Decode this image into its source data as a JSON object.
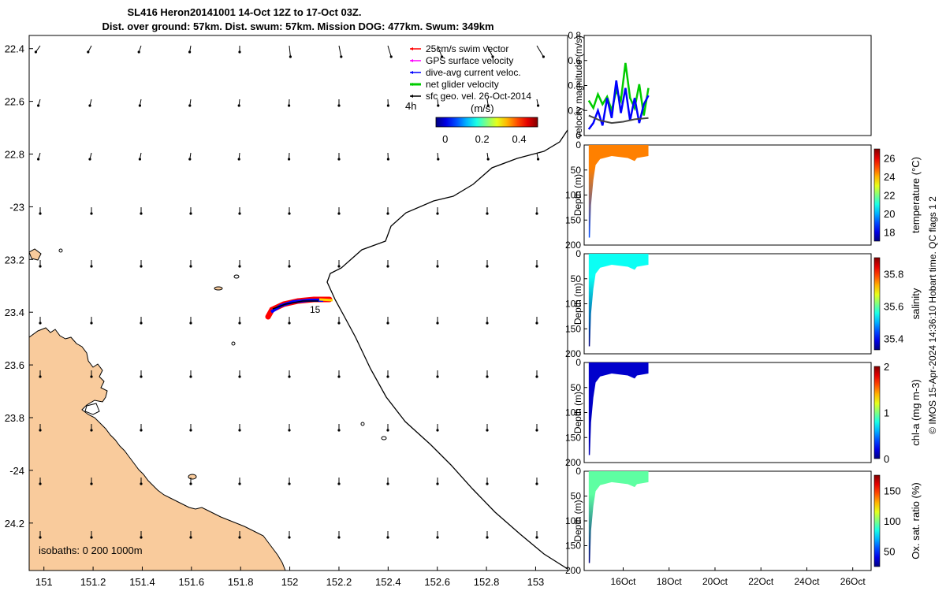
{
  "title": {
    "line1": "SL416 Heron20141001 14-Oct 12Z to 17-Oct 03Z.",
    "line2": "Dist. over ground: 57km. Dist. swum: 57km. Mission DOG: 477km. Swum: 349km"
  },
  "colors": {
    "land": "#f9cb9c",
    "swim": "#ff0000",
    "gps": "#ff00ff",
    "current": "#0000ff",
    "net": "#00cc00",
    "geo": "#000000"
  },
  "map": {
    "lon_ticks": [
      "151",
      "151.2",
      "151.4",
      "151.6",
      "151.8",
      "152",
      "152.2",
      "152.4",
      "152.6",
      "152.8",
      "153"
    ],
    "lat_ticks": [
      "22.4",
      "22.6",
      "22.8",
      "-23",
      "23.2",
      "23.4",
      "23.6",
      "23.8",
      "-24",
      "24.2"
    ],
    "lon_range": [
      150.94,
      153.13
    ],
    "lat_range": [
      22.35,
      24.38
    ],
    "legend": [
      {
        "label": "25cm/s swim vector",
        "color": "#ff0000"
      },
      {
        "label": "GPS surface velocity",
        "color": "#ff00ff"
      },
      {
        "label": "dive-avg current veloc.",
        "color": "#0000ff"
      },
      {
        "label": "net glider velocity",
        "color": "#00cc00"
      },
      {
        "label": "sfc geo. vel. 26-Oct-2014",
        "color": "#000000"
      }
    ],
    "colorbar": {
      "label": "(m/s)",
      "ticks": [
        "0",
        "0.2",
        "0.4"
      ],
      "range": [
        -0.05,
        0.5
      ]
    },
    "time_label": "4h",
    "track_label": "15",
    "isobaths_label": "isobaths: 0   200  1000m"
  },
  "chart_data": [
    {
      "type": "line",
      "title": "",
      "ylabel": "velocity magnitude (m/s)",
      "ylim": [
        0,
        0.8
      ],
      "yticks": [
        "0",
        "0.2",
        "0.4",
        "0.6",
        "0.8"
      ],
      "xlim": [
        14.3,
        26.8
      ],
      "series": [
        {
          "name": "net glider velocity",
          "x": [
            14.5,
            14.7,
            14.9,
            15.1,
            15.3,
            15.5,
            15.7,
            15.9,
            16.1,
            16.3,
            16.5,
            16.7,
            16.9,
            17.1
          ],
          "values": [
            0.28,
            0.22,
            0.33,
            0.25,
            0.31,
            0.2,
            0.36,
            0.28,
            0.58,
            0.3,
            0.22,
            0.41,
            0.16,
            0.38
          ]
        },
        {
          "name": "dive-avg current veloc.",
          "x": [
            14.5,
            14.7,
            14.9,
            15.1,
            15.3,
            15.5,
            15.7,
            15.9,
            16.1,
            16.3,
            16.5,
            16.7,
            16.9,
            17.1
          ],
          "values": [
            0.05,
            0.1,
            0.2,
            0.08,
            0.3,
            0.14,
            0.44,
            0.18,
            0.38,
            0.12,
            0.3,
            0.1,
            0.25,
            0.32
          ]
        },
        {
          "name": "sfc geo. vel.",
          "x": [
            14.5,
            15.0,
            15.5,
            16.0,
            16.5,
            17.1
          ],
          "values": [
            0.16,
            0.12,
            0.1,
            0.11,
            0.13,
            0.14
          ]
        }
      ]
    },
    {
      "type": "heatmap",
      "ylabel": "Depth (m)",
      "cbar_label": "temperature (°C)",
      "ylim": [
        200,
        0
      ],
      "yticks": [
        "0",
        "50",
        "100",
        "150",
        "200"
      ],
      "cbar_ticks": [
        "18",
        "20",
        "22",
        "24",
        "26"
      ],
      "cbar_range": [
        17,
        27
      ],
      "surface_value": 24.5
    },
    {
      "type": "heatmap",
      "ylabel": "Depth (m)",
      "cbar_label": "salinity",
      "ylim": [
        200,
        0
      ],
      "yticks": [
        "0",
        "50",
        "100",
        "150",
        "200"
      ],
      "cbar_ticks": [
        "35.4",
        "35.6",
        "35.8"
      ],
      "cbar_range": [
        35.33,
        35.9
      ],
      "surface_value": 35.55
    },
    {
      "type": "heatmap",
      "ylabel": "Depth (m)",
      "cbar_label": "chl-a (mg m-3)",
      "ylim": [
        200,
        0
      ],
      "yticks": [
        "0",
        "50",
        "100",
        "150",
        "200"
      ],
      "cbar_ticks": [
        "0",
        "1",
        "2"
      ],
      "cbar_range": [
        0,
        2
      ],
      "surface_value": 0.15
    },
    {
      "type": "heatmap",
      "ylabel": "Depth (m)",
      "cbar_label": "Ox. sat. ratio (%)",
      "ylim": [
        200,
        0
      ],
      "yticks": [
        "0",
        "50",
        "100",
        "150",
        "200"
      ],
      "cbar_ticks": [
        "50",
        "100",
        "150"
      ],
      "cbar_range": [
        25,
        175
      ],
      "surface_value": 95
    }
  ],
  "time_ticks": [
    "16Oct",
    "18Oct",
    "20Oct",
    "22Oct",
    "24Oct",
    "26Oct"
  ],
  "footer": "© IMOS 15-Apr-2024 14:36:10 Hobart time. QC flags 1  2"
}
